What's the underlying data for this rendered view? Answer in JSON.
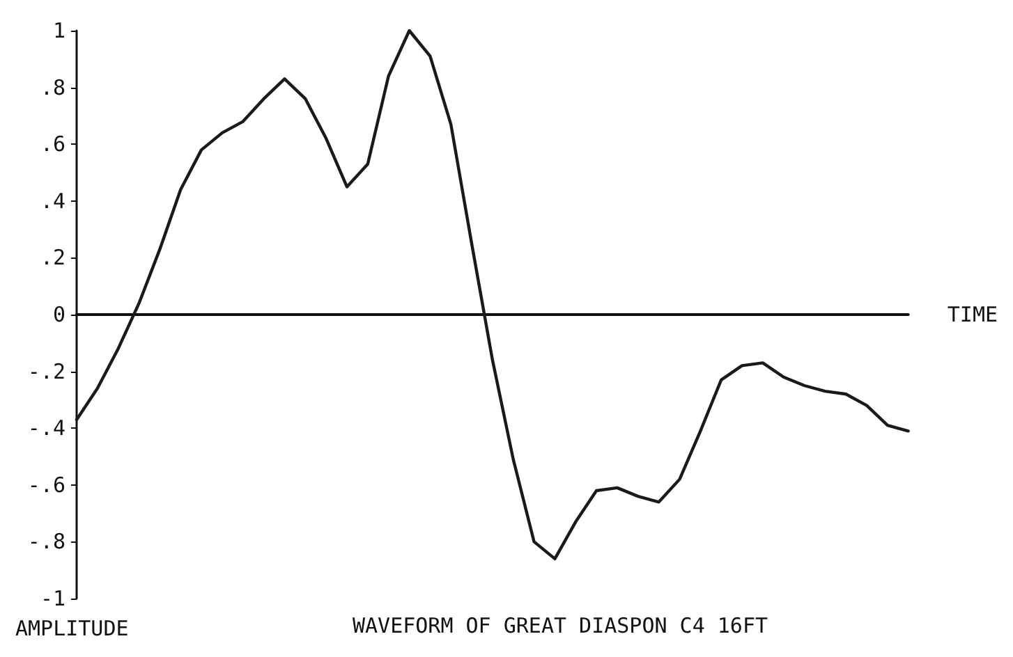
{
  "chart_data": {
    "type": "line",
    "title": "WAVEFORM OF GREAT DIASPON C4 16FT",
    "xlabel": "TIME",
    "ylabel": "AMPLITUDE",
    "categories": [
      null,
      null,
      null,
      null,
      null,
      null,
      null,
      null,
      null,
      null,
      null,
      null,
      null,
      null,
      null,
      null,
      null,
      null,
      null,
      null,
      null,
      null,
      null,
      null,
      null,
      null,
      null,
      null,
      null,
      null,
      null,
      null,
      null,
      null,
      null,
      null,
      null,
      null,
      null,
      null,
      null
    ],
    "series": [
      {
        "color": "#1a1a1a",
        "values": [
          -0.37,
          -0.26,
          -0.12,
          0.04,
          0.23,
          0.44,
          0.58,
          0.64,
          0.68,
          0.76,
          0.83,
          0.76,
          0.62,
          0.45,
          0.53,
          0.84,
          1,
          0.91,
          0.67,
          0.25,
          -0.16,
          -0.51,
          -0.8,
          -0.86,
          -0.73,
          -0.62,
          -0.61,
          -0.64,
          -0.66,
          -0.58,
          -0.41,
          -0.23,
          -0.18,
          -0.17,
          -0.22,
          -0.25,
          -0.27,
          -0.28,
          -0.32,
          -0.39,
          -0.41
        ]
      }
    ],
    "ylim": [
      -1,
      1
    ],
    "yticks": [
      {
        "value": -1,
        "label": "-1"
      },
      {
        "value": -0.8,
        "label": "-.8"
      },
      {
        "value": -0.6,
        "label": "-.6"
      },
      {
        "value": -0.4,
        "label": "-.4"
      },
      {
        "value": -0.2,
        "label": "-.2"
      },
      {
        "value": 0,
        "label": "0"
      },
      {
        "value": 0.2,
        "label": ".2"
      },
      {
        "value": 0.4,
        "label": ".4"
      },
      {
        "value": 0.6,
        "label": ".6"
      },
      {
        "value": 0.8,
        "label": ".8"
      },
      {
        "value": 1,
        "label": "1"
      }
    ],
    "marker": "none",
    "line_style": "solid"
  }
}
